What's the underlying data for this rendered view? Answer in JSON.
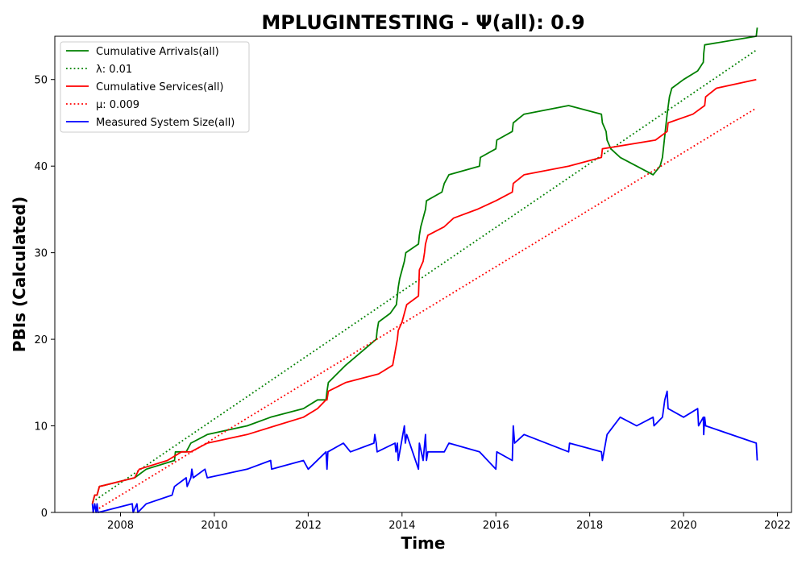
{
  "chart_data": {
    "type": "line",
    "title": "MPLUGINTESTING -  Ψ(all): 0.9",
    "xlabel": "Time",
    "ylabel": "PBIs (Calculated)",
    "xlim": [
      2006.6,
      2022.3
    ],
    "ylim": [
      0,
      55
    ],
    "xticks": [
      2008,
      2010,
      2012,
      2014,
      2016,
      2018,
      2020,
      2022
    ],
    "yticks": [
      0,
      10,
      20,
      30,
      40,
      50
    ],
    "grid": false,
    "legend_position": "top-left",
    "series": [
      {
        "name": "Cumulative Arrivals(all)",
        "color": "#008000",
        "style": "solid",
        "x": [
          2007.4,
          2007.45,
          2007.5,
          2007.55,
          2008.3,
          2008.55,
          2009.15,
          2009.17,
          2009.4,
          2009.5,
          2009.85,
          2010.7,
          2011.2,
          2011.9,
          2012.2,
          2012.38,
          2012.4,
          2012.43,
          2012.8,
          2013.45,
          2013.47,
          2013.5,
          2013.75,
          2013.88,
          2013.9,
          2013.92,
          2013.95,
          2014.0,
          2014.05,
          2014.08,
          2014.35,
          2014.37,
          2014.4,
          2014.45,
          2014.5,
          2014.52,
          2014.85,
          2014.9,
          2015.0,
          2015.65,
          2015.67,
          2016.0,
          2016.02,
          2016.35,
          2016.37,
          2016.6,
          2017.55,
          2018.25,
          2018.27,
          2018.35,
          2018.37,
          2018.45,
          2018.65,
          2019.0,
          2019.35,
          2019.5,
          2019.55,
          2019.65,
          2019.7,
          2019.75,
          2020.0,
          2020.3,
          2020.42,
          2020.43,
          2020.45,
          2021.55,
          2021.57
        ],
        "values": [
          1,
          2,
          2,
          3,
          4,
          5,
          6,
          7,
          7,
          8,
          9,
          10,
          11,
          12,
          13,
          13,
          14,
          15,
          17,
          20,
          21,
          22,
          23,
          24,
          25,
          26,
          27,
          28,
          29,
          30,
          31,
          32,
          33,
          34,
          35,
          36,
          37,
          38,
          39,
          40,
          41,
          42,
          43,
          44,
          45,
          46,
          47,
          46,
          45,
          44,
          43,
          42,
          41,
          40,
          39,
          40,
          41,
          46,
          48,
          49,
          50,
          51,
          52,
          53,
          54,
          55,
          56
        ]
      },
      {
        "name": "λ: 0.01",
        "color": "#008000",
        "style": "dotted",
        "x": [
          2007.4,
          2021.55
        ],
        "values": [
          1.2,
          53.4
        ]
      },
      {
        "name": "Cumulative Services(all)",
        "color": "#ff0000",
        "style": "solid",
        "x": [
          2007.4,
          2007.45,
          2007.5,
          2007.55,
          2008.3,
          2008.4,
          2009.0,
          2009.3,
          2009.5,
          2009.85,
          2010.7,
          2011.3,
          2011.9,
          2012.2,
          2012.38,
          2012.4,
          2012.43,
          2012.8,
          2013.5,
          2013.8,
          2013.9,
          2013.92,
          2014.0,
          2014.05,
          2014.1,
          2014.35,
          2014.37,
          2014.45,
          2014.48,
          2014.5,
          2014.55,
          2014.9,
          2015.1,
          2015.6,
          2016.0,
          2016.35,
          2016.37,
          2016.6,
          2017.55,
          2018.25,
          2018.27,
          2019.4,
          2019.65,
          2019.67,
          2020.2,
          2020.45,
          2020.47,
          2020.7,
          2021.55
        ],
        "values": [
          1,
          2,
          2,
          3,
          4,
          5,
          6,
          7,
          7,
          8,
          9,
          10,
          11,
          12,
          13,
          13,
          14,
          15,
          16,
          17,
          20,
          21,
          22,
          23,
          24,
          25,
          28,
          29,
          30,
          31,
          32,
          33,
          34,
          35,
          36,
          37,
          38,
          39,
          40,
          41,
          42,
          43,
          44,
          45,
          46,
          47,
          48,
          49,
          50
        ]
      },
      {
        "name": "μ: 0.009",
        "color": "#ff0000",
        "style": "dotted",
        "x": [
          2007.4,
          2021.55
        ],
        "values": [
          0,
          46.7
        ]
      },
      {
        "name": "Measured System Size(all)",
        "color": "#0000ff",
        "style": "solid",
        "x": [
          2007.4,
          2007.42,
          2007.45,
          2007.48,
          2007.5,
          2007.52,
          2008.25,
          2008.27,
          2008.35,
          2008.37,
          2008.55,
          2009.1,
          2009.15,
          2009.4,
          2009.42,
          2009.5,
          2009.52,
          2009.55,
          2009.8,
          2009.85,
          2010.7,
          2011.2,
          2011.22,
          2011.9,
          2012.0,
          2012.38,
          2012.4,
          2012.42,
          2012.75,
          2012.9,
          2013.4,
          2013.42,
          2013.45,
          2013.47,
          2013.85,
          2013.87,
          2013.9,
          2013.92,
          2014.05,
          2014.07,
          2014.1,
          2014.35,
          2014.37,
          2014.45,
          2014.5,
          2014.52,
          2014.55,
          2014.9,
          2015.0,
          2015.65,
          2016.0,
          2016.02,
          2016.35,
          2016.37,
          2016.4,
          2016.6,
          2017.55,
          2017.57,
          2018.25,
          2018.27,
          2018.37,
          2018.65,
          2019.0,
          2019.35,
          2019.37,
          2019.55,
          2019.6,
          2019.65,
          2019.67,
          2020.0,
          2020.3,
          2020.32,
          2020.42,
          2020.43,
          2020.45,
          2020.47,
          2021.55,
          2021.57
        ],
        "values": [
          1,
          0,
          1,
          0,
          1,
          0,
          1,
          0,
          1,
          0,
          1,
          2,
          3,
          4,
          3,
          4,
          5,
          4,
          5,
          4,
          5,
          6,
          5,
          6,
          5,
          7,
          5,
          7,
          8,
          7,
          8,
          9,
          8,
          7,
          8,
          7,
          8,
          6,
          10,
          8,
          9,
          5,
          8,
          6,
          9,
          6,
          7,
          7,
          8,
          7,
          5,
          7,
          6,
          10,
          8,
          9,
          7,
          8,
          7,
          6,
          9,
          11,
          10,
          11,
          10,
          11,
          13,
          14,
          12,
          11,
          12,
          10,
          11,
          9,
          11,
          10,
          8,
          6
        ]
      }
    ]
  }
}
